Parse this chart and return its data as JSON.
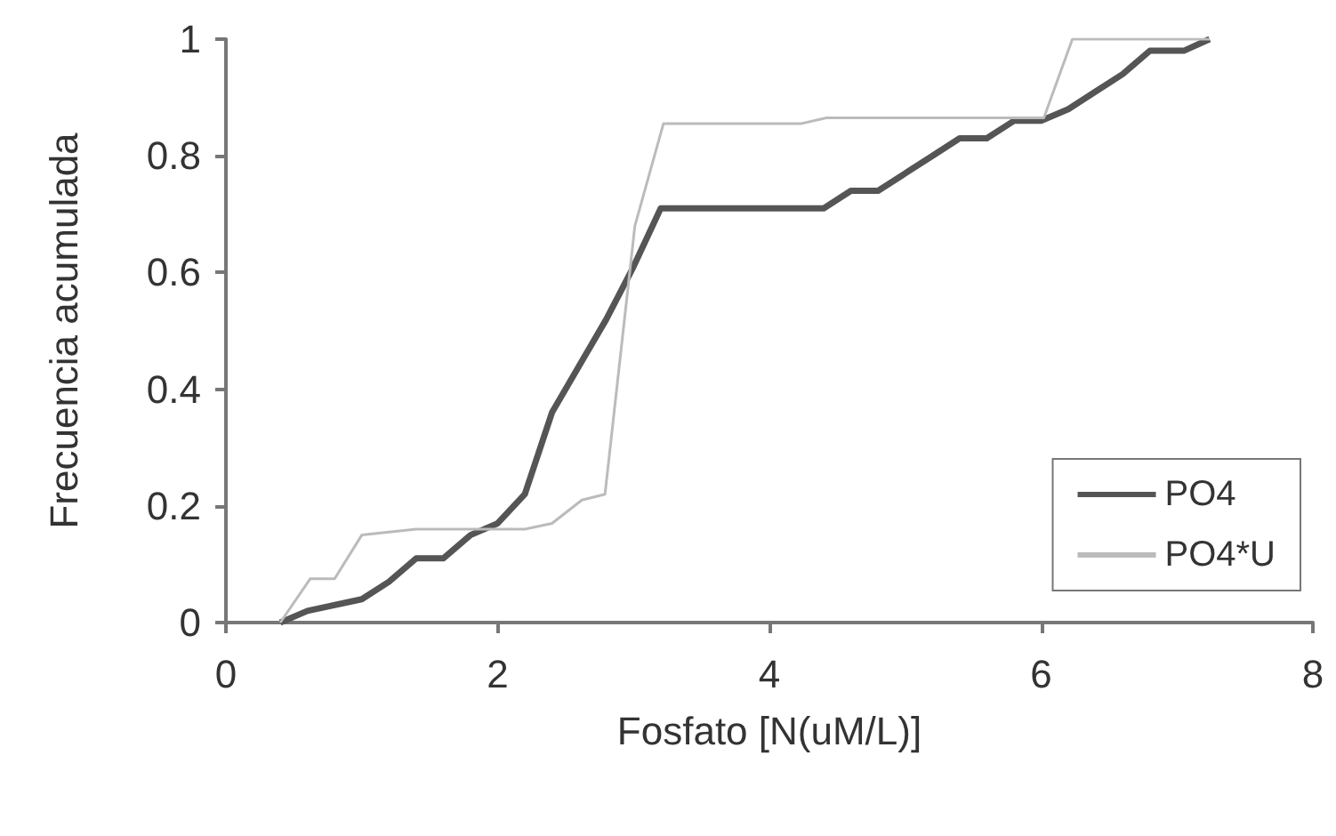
{
  "chart_data": {
    "type": "line",
    "xlabel": "Fosfato [N(uM/L)]",
    "ylabel": "Frecuencia acumulada",
    "xlim": [
      0,
      8
    ],
    "xticks": [
      0,
      2,
      4,
      6,
      8
    ],
    "ylim": [
      0,
      1
    ],
    "yticks": [
      0,
      0.2,
      0.4,
      0.6,
      0.8,
      1
    ],
    "grid": false,
    "legend": "right",
    "marker": "none",
    "series": [
      {
        "name": "PO4",
        "color": "#555555",
        "x": [
          0.4,
          0.6,
          1.0,
          1.2,
          1.4,
          1.6,
          1.8,
          2.0,
          2.2,
          2.4,
          2.6,
          2.8,
          3.0,
          3.2,
          4.0,
          4.4,
          4.6,
          4.8,
          5.0,
          5.2,
          5.4,
          5.6,
          5.8,
          6.0,
          6.2,
          6.4,
          6.6,
          6.8,
          7.05,
          7.24
        ],
        "values": [
          0,
          0.02,
          0.04,
          0.07,
          0.11,
          0.11,
          0.15,
          0.17,
          0.22,
          0.36,
          0.44,
          0.52,
          0.61,
          0.71,
          0.71,
          0.71,
          0.74,
          0.74,
          0.77,
          0.8,
          0.83,
          0.83,
          0.86,
          0.86,
          0.88,
          0.91,
          0.94,
          0.98,
          0.98,
          1
        ]
      },
      {
        "name": "PO4*U",
        "color": "#bbbbbb",
        "x": [
          0.4,
          0.62,
          0.8,
          1.0,
          1.4,
          2.2,
          2.4,
          2.62,
          2.79,
          3.01,
          3.22,
          4.23,
          4.42,
          6.02,
          6.23,
          7.24
        ],
        "values": [
          0,
          0.075,
          0.075,
          0.15,
          0.16,
          0.16,
          0.17,
          0.21,
          0.22,
          0.68,
          0.855,
          0.855,
          0.865,
          0.865,
          1,
          1
        ]
      }
    ]
  }
}
